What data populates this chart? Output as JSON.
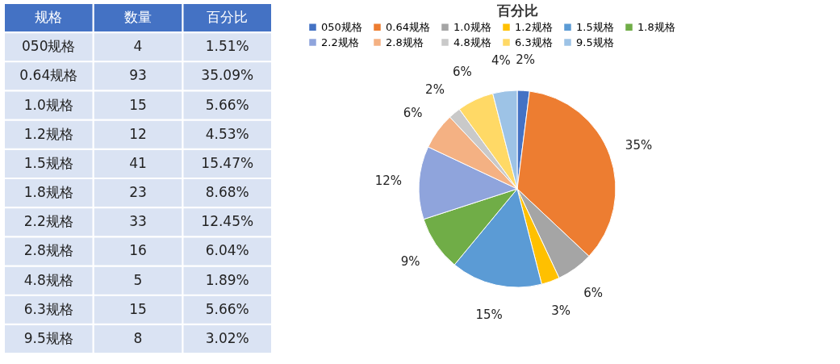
{
  "chart_data": [
    {
      "type": "other",
      "xlabel": "规格",
      "data_labels": true,
      "categories": [
        "050规格",
        "0.64规格",
        "1.0规格",
        "1.2规格",
        "1.5规格",
        "1.8规格",
        "2.2规格",
        "2.8规格",
        "4.8规格",
        "6.3规格",
        "9.5规格"
      ],
      "series": [
        {
          "name": "数量",
          "values": [
            4,
            93,
            15,
            12,
            41,
            23,
            33,
            16,
            5,
            15,
            8
          ]
        },
        {
          "name": "百分比",
          "values": [
            1.51,
            35.09,
            5.66,
            4.53,
            15.47,
            8.68,
            12.45,
            6.04,
            1.89,
            5.66,
            3.02
          ],
          "value_labels": [
            "1.51%",
            "35.09%",
            "5.66%",
            "4.53%",
            "15.47%",
            "8.68%",
            "12.45%",
            "6.04%",
            "1.89%",
            "5.66%",
            "3.02%"
          ]
        }
      ]
    },
    {
      "type": "pie",
      "title": "百分比",
      "legend": "top",
      "categories": [
        "050规格",
        "0.64规格",
        "1.0规格",
        "1.2规格",
        "1.5规格",
        "1.8规格",
        "2.2规格",
        "2.8规格",
        "4.8规格",
        "6.3规格",
        "9.5规格"
      ],
      "values": [
        2,
        35,
        6,
        3,
        15,
        9,
        12,
        6,
        2,
        6,
        4
      ],
      "value_labels": [
        "2%",
        "35%",
        "6%",
        "3%",
        "15%",
        "9%",
        "12%",
        "6%",
        "2%",
        "6%",
        "4%"
      ],
      "colors": [
        "#4472c4",
        "#ed7d31",
        "#a5a5a5",
        "#ffc000",
        "#5b9bd5",
        "#70ad47",
        "#8fa4dc",
        "#f4b183",
        "#c9c9c9",
        "#ffd966",
        "#9dc3e6"
      ]
    }
  ]
}
